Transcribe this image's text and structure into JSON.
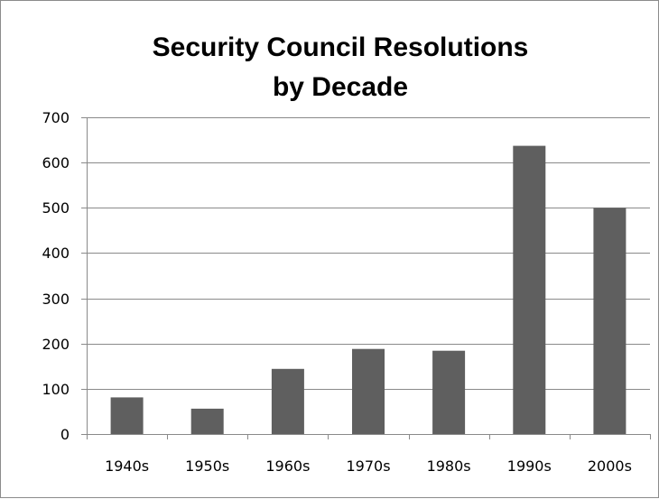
{
  "chart_data": {
    "type": "bar",
    "title_lines": [
      "Security Council Resolutions",
      "by Decade"
    ],
    "categories": [
      "1940s",
      "1950s",
      "1960s",
      "1970s",
      "1980s",
      "1990s",
      "2000s"
    ],
    "values": [
      81,
      56,
      144,
      188,
      184,
      637,
      500
    ],
    "ylim": [
      0,
      700
    ],
    "yticks": [
      0,
      100,
      200,
      300,
      400,
      500,
      600,
      700
    ],
    "grid": true,
    "legend": "none",
    "bar_color": "#5f5f5f"
  }
}
